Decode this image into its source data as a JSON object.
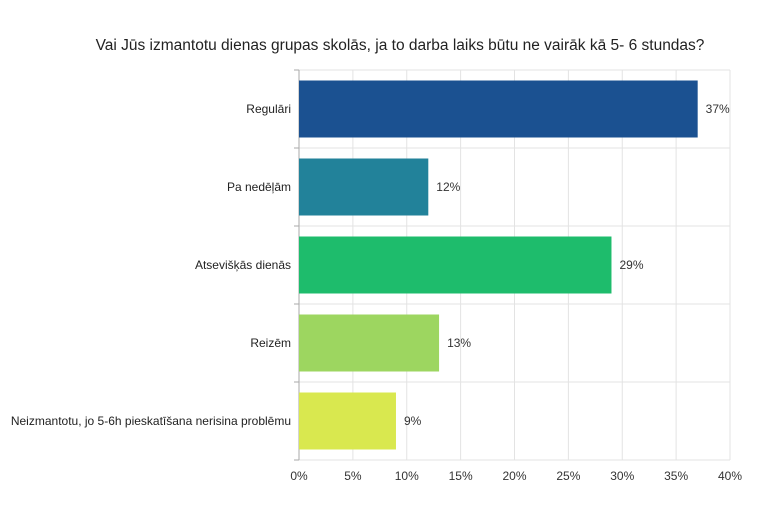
{
  "chart_data": {
    "type": "bar",
    "orientation": "horizontal",
    "title": "Vai Jūs izmantotu dienas grupas skolās, ja to darba laiks būtu ne vairāk kā 5- 6 stundas?",
    "categories": [
      "Regulāri",
      "Pa nedēļām",
      "Atsevišķās dienās",
      "Reizēm",
      "Neizmantotu, jo 5-6h pieskatīšana nerisina problēmu"
    ],
    "values": [
      37,
      12,
      29,
      13,
      9
    ],
    "data_labels": [
      "37%",
      "12%",
      "29%",
      "13%",
      "9%"
    ],
    "colors": [
      "#1b5191",
      "#22829a",
      "#1ebc6c",
      "#9dd660",
      "#d9e84f"
    ],
    "xlim": [
      0,
      40
    ],
    "xticks": [
      0,
      5,
      10,
      15,
      20,
      25,
      30,
      35,
      40
    ],
    "xtick_labels": [
      "0%",
      "5%",
      "10%",
      "15%",
      "20%",
      "25%",
      "30%",
      "35%",
      "40%"
    ],
    "xlabel": "",
    "ylabel": "",
    "grid": true,
    "legend": "none"
  }
}
